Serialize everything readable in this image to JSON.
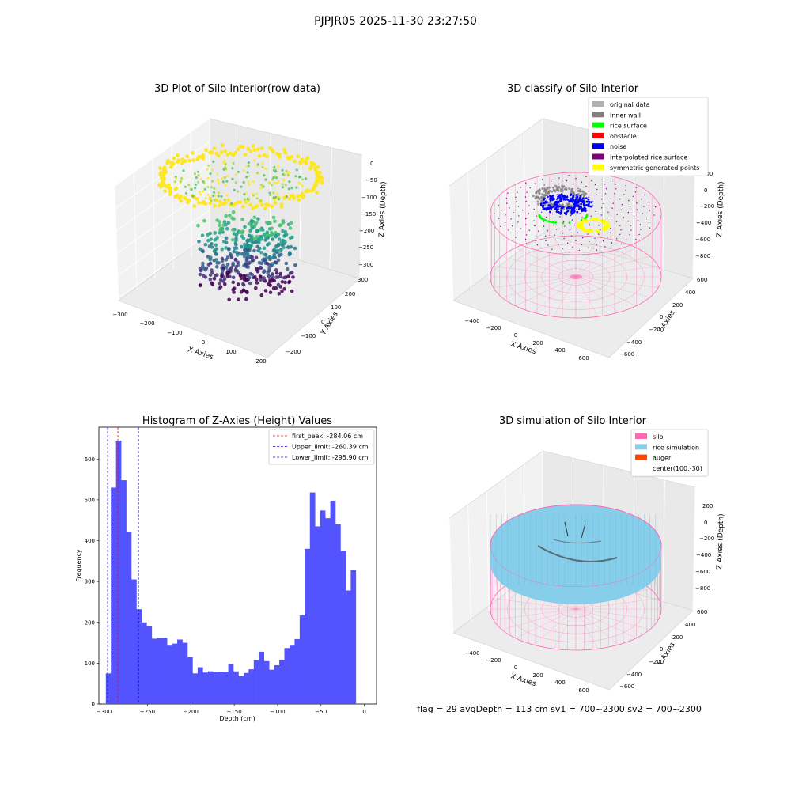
{
  "suptitle": "PJPJR05 2025-11-30 23:27:50",
  "footer": "flag = 29  avgDepth = 113 cm  sv1 = 700~2300  sv2 = 700~2300",
  "colors": {
    "hist_bar": "#4b4bff",
    "first_peak": "#ff0000",
    "limit": "#0000cc",
    "silo": "#ff69b4",
    "rice_simulation": "#87ceeb",
    "auger": "#ff4500",
    "noise": "#0000ff",
    "rice_surface": "#00ff00",
    "symmetric": "#ffff00",
    "inner_wall": "#808080",
    "original": "#b0b0b0",
    "obstacle": "#ff0000",
    "interpolated": "#800080"
  },
  "chart_data": [
    {
      "type": "scatter",
      "title": "3D Plot of Silo Interior(row data)",
      "xlabel": "X Axies",
      "ylabel": "Y Axies",
      "zlabel": "Z Axies (Depth)",
      "x_ticks": [
        "−300",
        "−200",
        "−100",
        "0",
        "100",
        "200"
      ],
      "y_ticks": [
        "−200",
        "−100",
        "0",
        "100",
        "200",
        "300"
      ],
      "z_ticks": [
        "0",
        "−50",
        "−100",
        "−150",
        "−200",
        "−250",
        "−300"
      ],
      "xlim": [
        -300,
        200
      ],
      "ylim": [
        -200,
        300
      ],
      "zlim": [
        -300,
        0
      ],
      "colormap": "viridis"
    },
    {
      "type": "scatter",
      "title": "3D classify of Silo Interior",
      "xlabel": "X Axies",
      "ylabel": "Y Axies",
      "zlabel": "Z Axies (Depth)",
      "x_ticks": [
        "−400",
        "−200",
        "0",
        "200",
        "400",
        "600"
      ],
      "y_ticks": [
        "−600",
        "−400",
        "−200",
        "0",
        "200",
        "400",
        "600"
      ],
      "z_ticks": [
        "200",
        "0",
        "−200",
        "−400",
        "−600",
        "−800"
      ],
      "legend": [
        "original data",
        "inner wall",
        "rice surface",
        "obstacle",
        "noise",
        "interpolated rice surface",
        "symmetric generated points"
      ],
      "legend_colors": [
        "#b0b0b0",
        "#808080",
        "#00ff00",
        "#ff0000",
        "#0000ff",
        "#800080",
        "#ffff00"
      ],
      "legend_position": "top-right"
    },
    {
      "type": "bar",
      "title": "Histogram of Z-Axies (Height) Values",
      "xlabel": "Depth (cm)",
      "ylabel": "Frequency",
      "xlim": [
        -306,
        14
      ],
      "ylim": [
        0,
        678
      ],
      "x_ticks": [
        "−300",
        "−250",
        "−200",
        "−150",
        "−100",
        "−50",
        "0"
      ],
      "x_tick_values": [
        -300,
        -250,
        -200,
        -150,
        -100,
        -50,
        0
      ],
      "y_ticks": [
        "0",
        "100",
        "200",
        "300",
        "400",
        "500",
        "600"
      ],
      "y_tick_values": [
        0,
        100,
        200,
        300,
        400,
        500,
        600
      ],
      "bin_start": -298,
      "bin_width": 5.88,
      "values": [
        75,
        530,
        645,
        548,
        422,
        305,
        232,
        200,
        190,
        160,
        162,
        162,
        143,
        148,
        158,
        150,
        115,
        75,
        90,
        77,
        80,
        78,
        79,
        78,
        98,
        80,
        68,
        76,
        85,
        107,
        128,
        105,
        84,
        95,
        108,
        137,
        143,
        159,
        217,
        380,
        518,
        435,
        474,
        455,
        498,
        440,
        375,
        278,
        328
      ],
      "vlines": [
        {
          "label": "first_peak: -284.06 cm",
          "x": -284.06,
          "color": "#ff0000"
        },
        {
          "label": "Upper_limit: -260.39 cm",
          "x": -260.39,
          "color": "#0000cc"
        },
        {
          "label": "Lower_limit: -295.90 cm",
          "x": -295.9,
          "color": "#0000cc"
        }
      ],
      "legend_position": "top-right"
    },
    {
      "type": "scatter",
      "title": "3D simulation of Silo Interior",
      "xlabel": "X Axies",
      "ylabel": "Y Axies",
      "zlabel": "Z Axies (Depth)",
      "x_ticks": [
        "−400",
        "−200",
        "0",
        "200",
        "400",
        "600"
      ],
      "y_ticks": [
        "−600",
        "−400",
        "−200",
        "0",
        "200",
        "400",
        "600"
      ],
      "z_ticks": [
        "200",
        "0",
        "−200",
        "−400",
        "−600",
        "−800"
      ],
      "legend": [
        "silo",
        "rice simulation",
        "auger",
        "center(100,-30)"
      ],
      "legend_colors": [
        "#ff69b4",
        "#87ceeb",
        "#ff4500",
        ""
      ],
      "legend_position": "top-right"
    }
  ]
}
